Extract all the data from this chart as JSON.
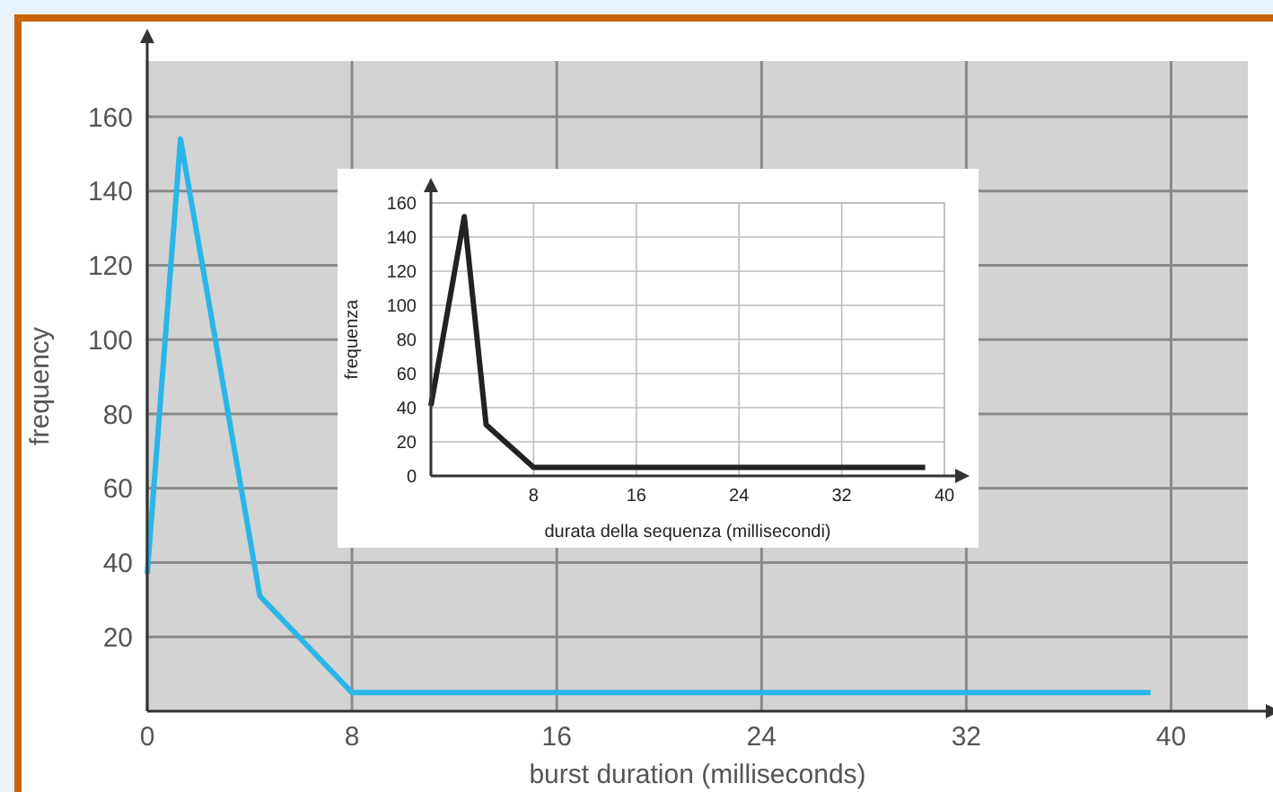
{
  "chart_data": [
    {
      "type": "line",
      "xlabel": "burst duration (milliseconds)",
      "ylabel": "frequency",
      "x": [
        0,
        1.3,
        4.4,
        8,
        39.2
      ],
      "series": [
        {
          "color": "#29b6e8",
          "values": [
            37,
            154,
            31,
            5,
            5
          ]
        }
      ],
      "xlim": [
        0,
        43
      ],
      "ylim": [
        0,
        175
      ],
      "xticks": [
        0,
        8,
        16,
        24,
        32,
        40
      ],
      "yticks": [
        20,
        40,
        60,
        80,
        100,
        120,
        140,
        160
      ],
      "grid": true,
      "marker": "none",
      "line_style": "solid"
    },
    {
      "type": "line",
      "xlabel": "durata della sequenza (millisecondi)",
      "ylabel": "frequenza",
      "x": [
        0,
        2.6,
        4.3,
        8,
        38.5
      ],
      "series": [
        {
          "color": "#222222",
          "values": [
            41,
            152,
            30,
            5,
            5
          ]
        }
      ],
      "xlim": [
        0,
        40
      ],
      "ylim": [
        0,
        160
      ],
      "xticks": [
        8,
        16,
        24,
        32,
        40
      ],
      "yticks": [
        0,
        20,
        40,
        60,
        80,
        100,
        120,
        140,
        160
      ],
      "grid": true,
      "marker": "none",
      "line_style": "solid"
    }
  ]
}
